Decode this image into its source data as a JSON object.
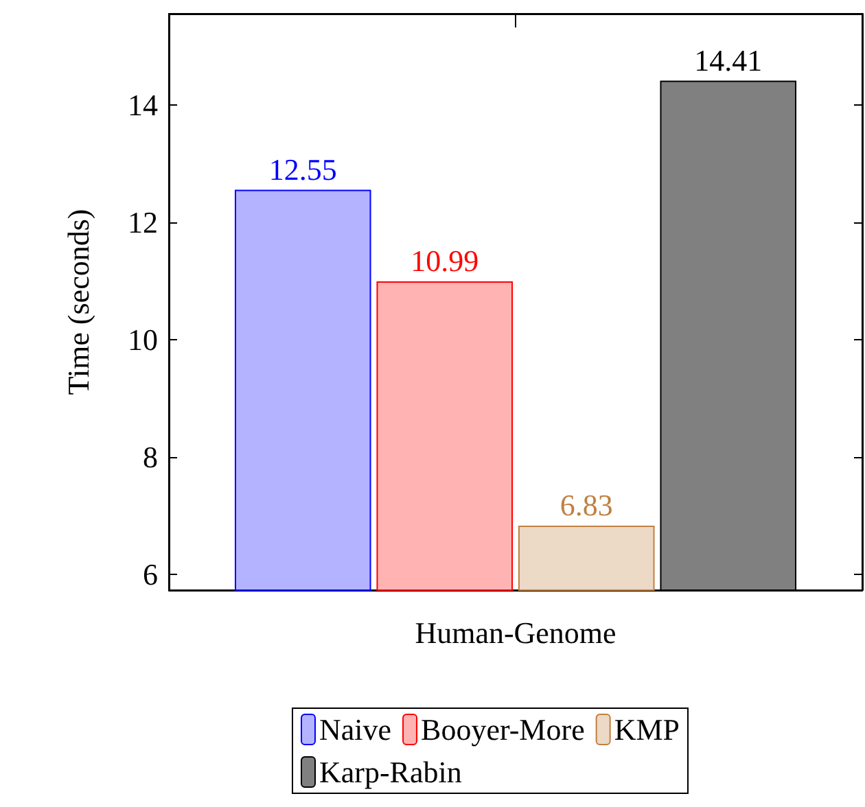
{
  "chart_data": {
    "type": "bar",
    "categories": [
      "Human-Genome"
    ],
    "ylabel": "Time (seconds)",
    "ylim": [
      5.73,
      15.55
    ],
    "yticks": [
      6,
      8,
      10,
      12,
      14
    ],
    "data_labels": true,
    "legend": "bottom",
    "grid": false,
    "series": [
      {
        "name": "Naive",
        "color": "#b3b3ff",
        "values": [
          12.55
        ]
      },
      {
        "name": "Booyer-More",
        "color": "#ffb3b3",
        "values": [
          10.99
        ]
      },
      {
        "name": "KMP",
        "color": "#ecd9c6",
        "values": [
          6.83
        ]
      },
      {
        "name": "Karp-Rabin",
        "color": "#808080",
        "values": [
          14.41
        ]
      }
    ]
  }
}
